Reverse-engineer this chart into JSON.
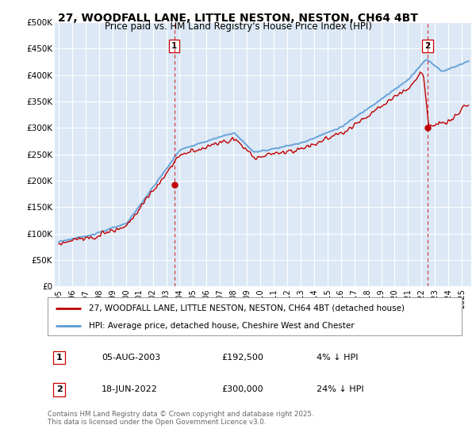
{
  "title": "27, WOODFALL LANE, LITTLE NESTON, NESTON, CH64 4BT",
  "subtitle": "Price paid vs. HM Land Registry's House Price Index (HPI)",
  "ylim": [
    0,
    500000
  ],
  "yticks": [
    0,
    50000,
    100000,
    150000,
    200000,
    250000,
    300000,
    350000,
    400000,
    450000,
    500000
  ],
  "ytick_labels": [
    "£0",
    "£50K",
    "£100K",
    "£150K",
    "£200K",
    "£250K",
    "£300K",
    "£350K",
    "£400K",
    "£450K",
    "£500K"
  ],
  "hpi_color": "#5b9bd5",
  "price_color": "#c00000",
  "marker1_price": 192500,
  "marker1_x": 2003.6,
  "marker2_price": 300000,
  "marker2_x": 2022.46,
  "vline_color": "#cc0000",
  "background_color": "#dce8f5",
  "legend_line1": "27, WOODFALL LANE, LITTLE NESTON, NESTON, CH64 4BT (detached house)",
  "legend_line2": "HPI: Average price, detached house, Cheshire West and Chester",
  "table_row1": [
    "1",
    "05-AUG-2003",
    "£192,500",
    "4% ↓ HPI"
  ],
  "table_row2": [
    "2",
    "18-JUN-2022",
    "£300,000",
    "24% ↓ HPI"
  ],
  "footnote": "Contains HM Land Registry data © Crown copyright and database right 2025.\nThis data is licensed under the Open Government Licence v3.0.",
  "title_fontsize": 10,
  "subtitle_fontsize": 9
}
